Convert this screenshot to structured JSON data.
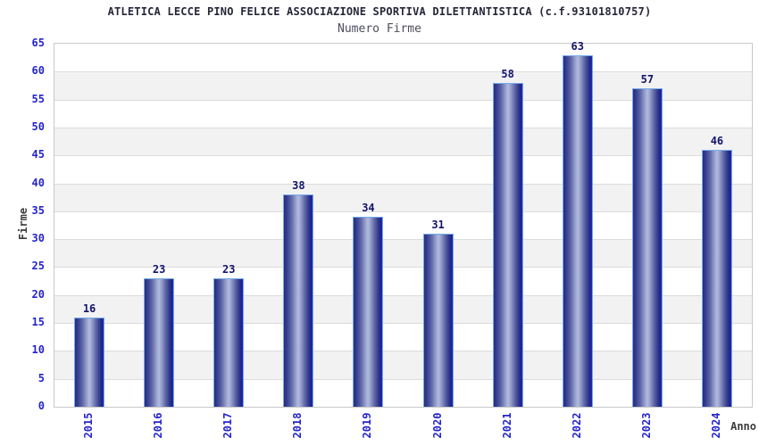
{
  "header": {
    "title": "ATLETICA LECCE PINO FELICE ASSOCIAZIONE SPORTIVA DILETTANTISTICA (c.f.93101810757)",
    "subtitle": "Numero Firme"
  },
  "chart_data": {
    "type": "bar",
    "title": "ATLETICA LECCE PINO FELICE ASSOCIAZIONE SPORTIVA DILETTANTISTICA (c.f.93101810757)",
    "subtitle": "Numero Firme",
    "categories": [
      "2015",
      "2016",
      "2017",
      "2018",
      "2019",
      "2020",
      "2021",
      "2022",
      "2023",
      "2024"
    ],
    "values": [
      16,
      23,
      23,
      38,
      34,
      31,
      58,
      63,
      57,
      46
    ],
    "xlabel": "Anno",
    "ylabel": "Firme",
    "ylim": [
      0,
      65
    ],
    "ytick_step": 5,
    "yticks": [
      0,
      5,
      10,
      15,
      20,
      25,
      30,
      35,
      40,
      45,
      50,
      55,
      60,
      65
    ],
    "grid": true,
    "legend": false,
    "bar_value_labels": true,
    "x_tick_rotation_deg": -90,
    "colors": {
      "title_text": "#26263a",
      "subtitle_text": "#4d4d5c",
      "tick_label_blue": "#2424cc",
      "value_label_navy": "#13136b",
      "axis_title_text": "#3c3c3c",
      "bar_edge_dark": "#262d82",
      "bar_center_light": "#b2badf",
      "bar_right_accent": "#2a32c8",
      "bar_outline_lightblue": "#74aaea",
      "band_gray": "#f2f2f2",
      "band_white": "#ffffff",
      "grid_line": "#dcdcdc",
      "plot_border": "#c8c8c8"
    }
  }
}
